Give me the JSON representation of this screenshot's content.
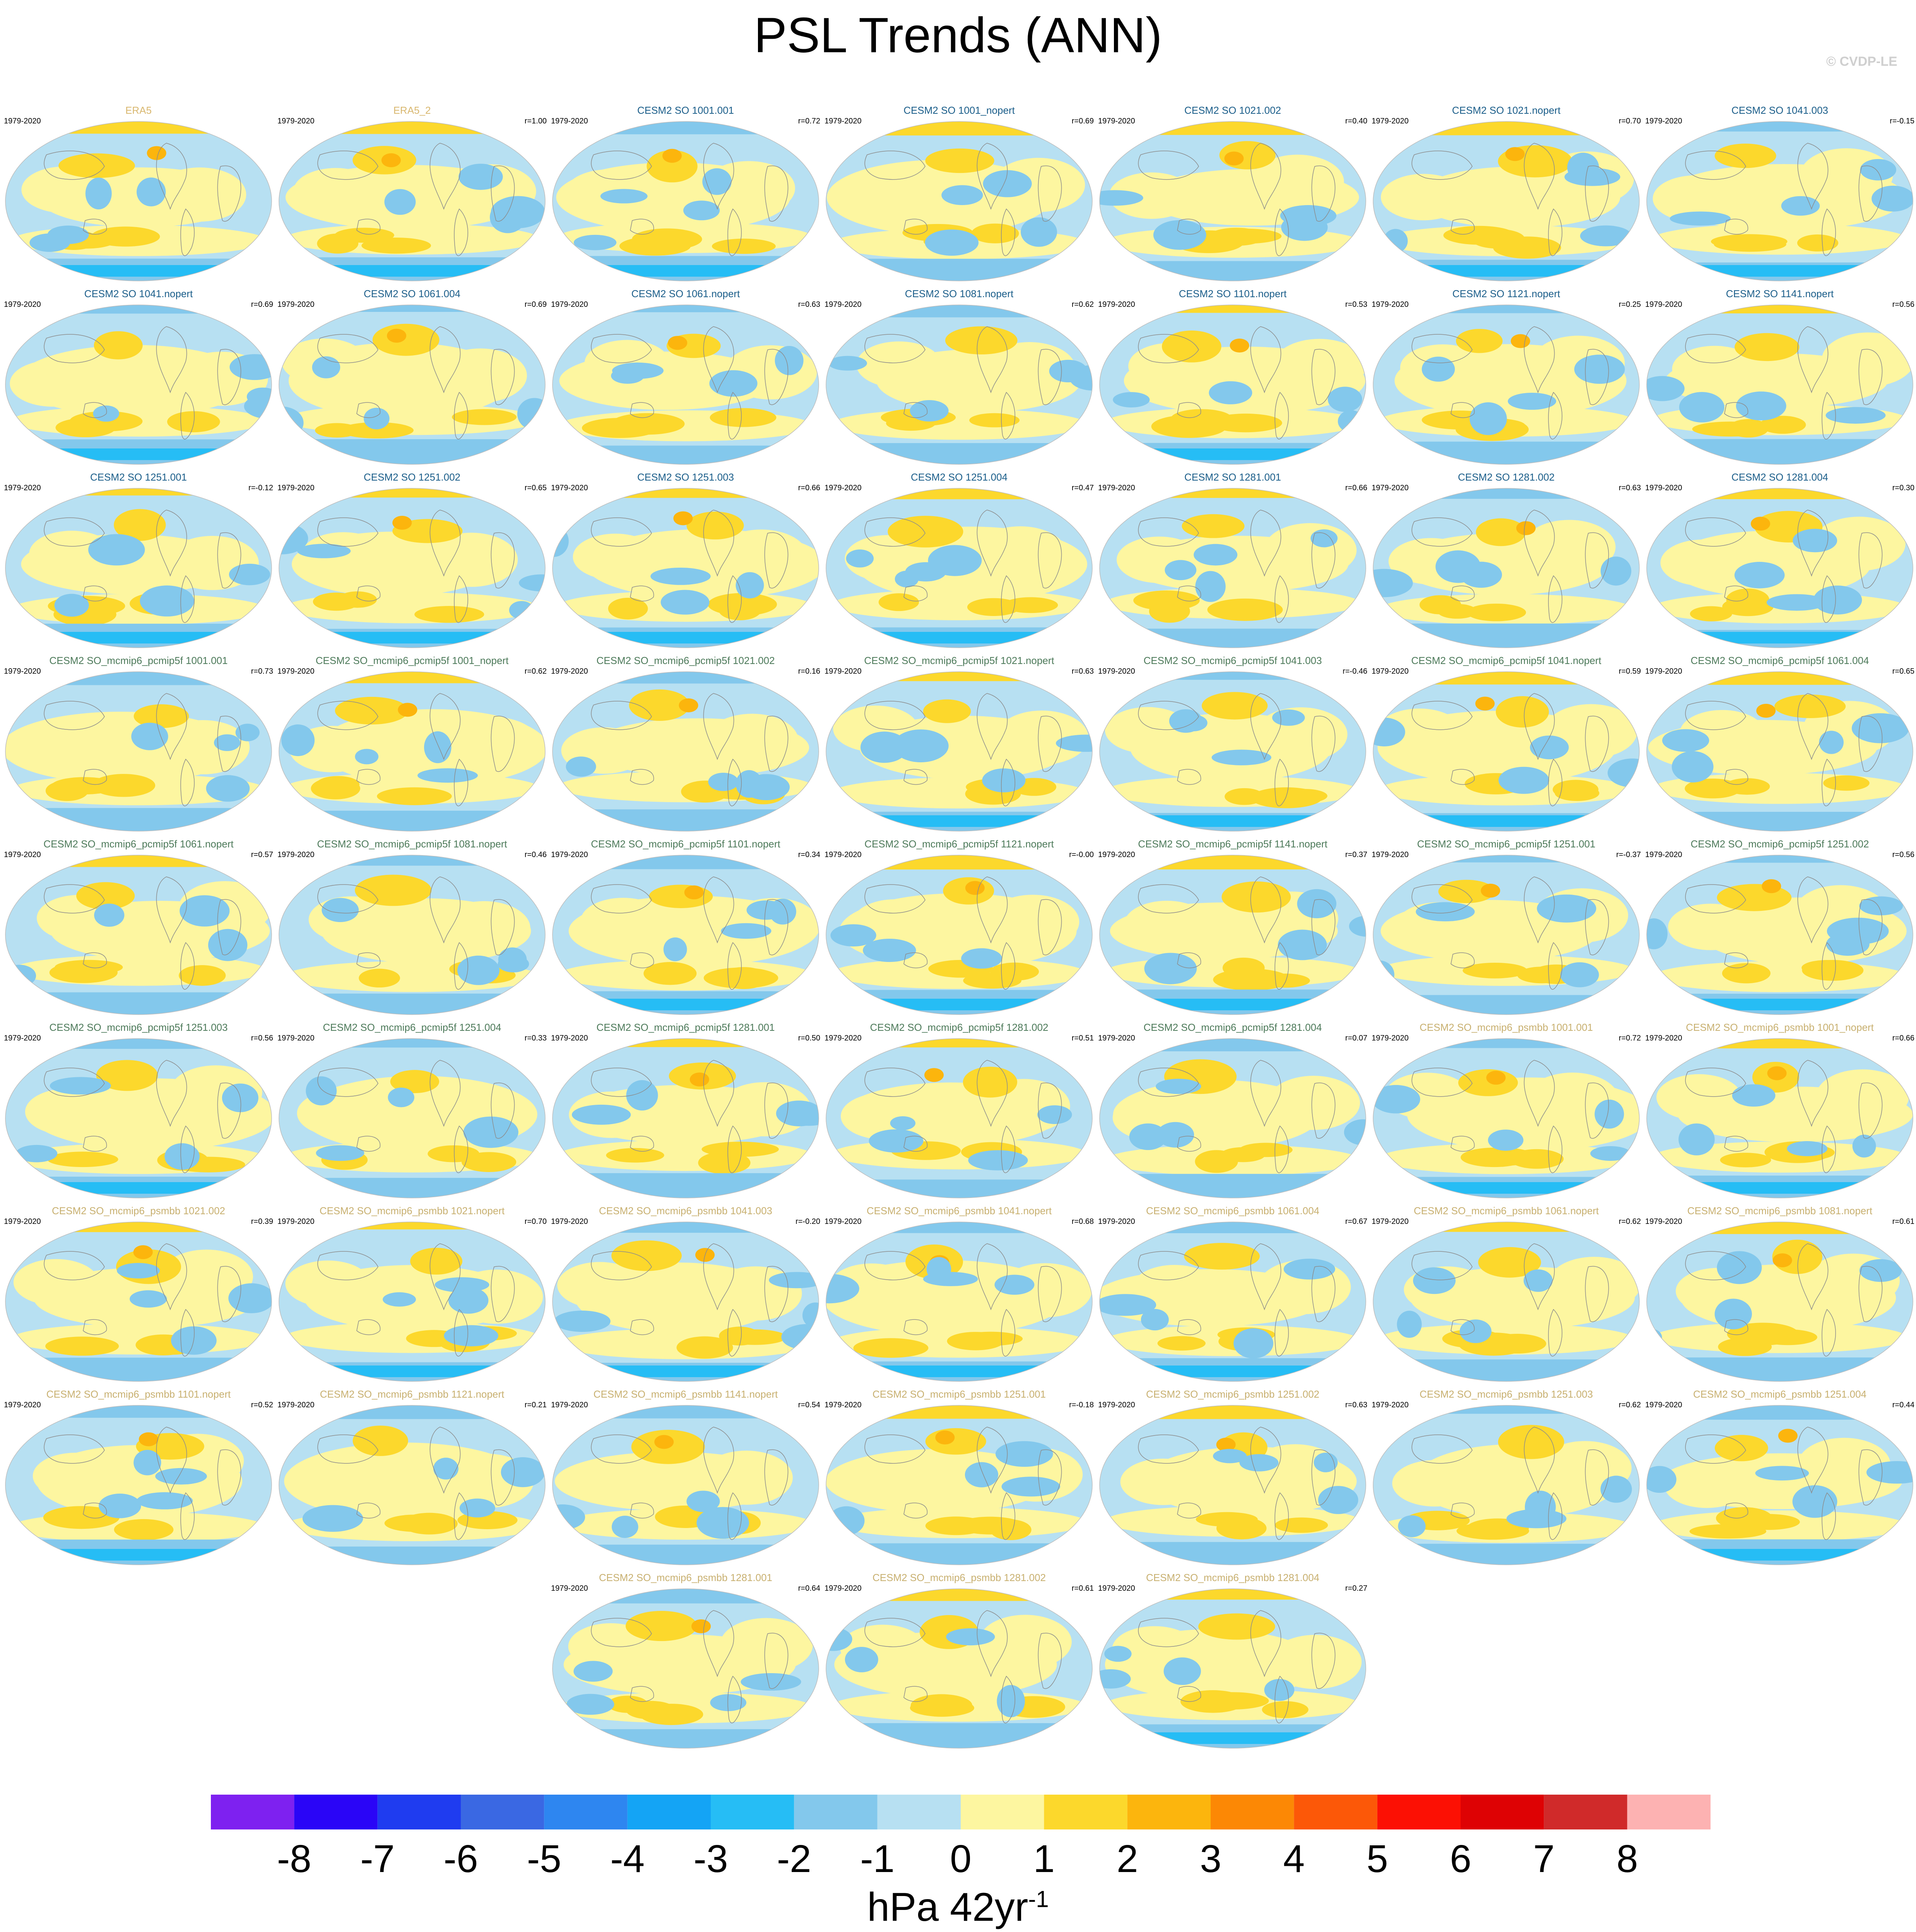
{
  "title": "PSL Trends (ANN)",
  "credit": "© CVDP-LE",
  "colors": {
    "title_ref": "#d9b870",
    "title_so": "#1b5e8a",
    "title_pcmip": "#4d7a5a",
    "title_psmbb": "#c8b070",
    "land_outline": "#8c8c8c"
  },
  "panels": [
    {
      "title": "ERA5",
      "period": "1979-2020",
      "r": "",
      "group": "ref"
    },
    {
      "title": "ERA5_2",
      "period": "1979-2020",
      "r": "r=1.00",
      "group": "ref"
    },
    {
      "title": "CESM2 SO 1001.001",
      "period": "1979-2020",
      "r": "r=0.72",
      "group": "so"
    },
    {
      "title": "CESM2 SO 1001_nopert",
      "period": "1979-2020",
      "r": "r=0.69",
      "group": "so"
    },
    {
      "title": "CESM2 SO 1021.002",
      "period": "1979-2020",
      "r": "r=0.40",
      "group": "so"
    },
    {
      "title": "CESM2 SO 1021.nopert",
      "period": "1979-2020",
      "r": "r=0.70",
      "group": "so"
    },
    {
      "title": "CESM2 SO 1041.003",
      "period": "1979-2020",
      "r": "r=-0.15",
      "group": "so"
    },
    {
      "title": "CESM2 SO 1041.nopert",
      "period": "1979-2020",
      "r": "r=0.69",
      "group": "so"
    },
    {
      "title": "CESM2 SO 1061.004",
      "period": "1979-2020",
      "r": "r=0.69",
      "group": "so"
    },
    {
      "title": "CESM2 SO 1061.nopert",
      "period": "1979-2020",
      "r": "r=0.63",
      "group": "so"
    },
    {
      "title": "CESM2 SO 1081.nopert",
      "period": "1979-2020",
      "r": "r=0.62",
      "group": "so"
    },
    {
      "title": "CESM2 SO 1101.nopert",
      "period": "1979-2020",
      "r": "r=0.53",
      "group": "so"
    },
    {
      "title": "CESM2 SO 1121.nopert",
      "period": "1979-2020",
      "r": "r=0.25",
      "group": "so"
    },
    {
      "title": "CESM2 SO 1141.nopert",
      "period": "1979-2020",
      "r": "r=0.56",
      "group": "so"
    },
    {
      "title": "CESM2 SO 1251.001",
      "period": "1979-2020",
      "r": "r=-0.12",
      "group": "so"
    },
    {
      "title": "CESM2 SO 1251.002",
      "period": "1979-2020",
      "r": "r=0.65",
      "group": "so"
    },
    {
      "title": "CESM2 SO 1251.003",
      "period": "1979-2020",
      "r": "r=0.66",
      "group": "so"
    },
    {
      "title": "CESM2 SO 1251.004",
      "period": "1979-2020",
      "r": "r=0.47",
      "group": "so"
    },
    {
      "title": "CESM2 SO 1281.001",
      "period": "1979-2020",
      "r": "r=0.66",
      "group": "so"
    },
    {
      "title": "CESM2 SO 1281.002",
      "period": "1979-2020",
      "r": "r=0.63",
      "group": "so"
    },
    {
      "title": "CESM2 SO 1281.004",
      "period": "1979-2020",
      "r": "r=0.30",
      "group": "so"
    },
    {
      "title": "CESM2 SO_mcmip6_pcmip5f 1001.001",
      "period": "1979-2020",
      "r": "r=0.73",
      "group": "pcmip"
    },
    {
      "title": "CESM2 SO_mcmip6_pcmip5f 1001_nopert",
      "period": "1979-2020",
      "r": "r=0.62",
      "group": "pcmip"
    },
    {
      "title": "CESM2 SO_mcmip6_pcmip5f 1021.002",
      "period": "1979-2020",
      "r": "r=0.16",
      "group": "pcmip"
    },
    {
      "title": "CESM2 SO_mcmip6_pcmip5f 1021.nopert",
      "period": "1979-2020",
      "r": "r=0.63",
      "group": "pcmip"
    },
    {
      "title": "CESM2 SO_mcmip6_pcmip5f 1041.003",
      "period": "1979-2020",
      "r": "r=-0.46",
      "group": "pcmip"
    },
    {
      "title": "CESM2 SO_mcmip6_pcmip5f 1041.nopert",
      "period": "1979-2020",
      "r": "r=0.59",
      "group": "pcmip"
    },
    {
      "title": "CESM2 SO_mcmip6_pcmip5f 1061.004",
      "period": "1979-2020",
      "r": "r=0.65",
      "group": "pcmip"
    },
    {
      "title": "CESM2 SO_mcmip6_pcmip5f 1061.nopert",
      "period": "1979-2020",
      "r": "r=0.57",
      "group": "pcmip"
    },
    {
      "title": "CESM2 SO_mcmip6_pcmip5f 1081.nopert",
      "period": "1979-2020",
      "r": "r=0.46",
      "group": "pcmip"
    },
    {
      "title": "CESM2 SO_mcmip6_pcmip5f 1101.nopert",
      "period": "1979-2020",
      "r": "r=0.34",
      "group": "pcmip"
    },
    {
      "title": "CESM2 SO_mcmip6_pcmip5f 1121.nopert",
      "period": "1979-2020",
      "r": "r=-0.00",
      "group": "pcmip"
    },
    {
      "title": "CESM2 SO_mcmip6_pcmip5f 1141.nopert",
      "period": "1979-2020",
      "r": "r=0.37",
      "group": "pcmip"
    },
    {
      "title": "CESM2 SO_mcmip6_pcmip5f 1251.001",
      "period": "1979-2020",
      "r": "r=-0.37",
      "group": "pcmip"
    },
    {
      "title": "CESM2 SO_mcmip6_pcmip5f 1251.002",
      "period": "1979-2020",
      "r": "r=0.56",
      "group": "pcmip"
    },
    {
      "title": "CESM2 SO_mcmip6_pcmip5f 1251.003",
      "period": "1979-2020",
      "r": "r=0.56",
      "group": "pcmip"
    },
    {
      "title": "CESM2 SO_mcmip6_pcmip5f 1251.004",
      "period": "1979-2020",
      "r": "r=0.33",
      "group": "pcmip"
    },
    {
      "title": "CESM2 SO_mcmip6_pcmip5f 1281.001",
      "period": "1979-2020",
      "r": "r=0.50",
      "group": "pcmip"
    },
    {
      "title": "CESM2 SO_mcmip6_pcmip5f 1281.002",
      "period": "1979-2020",
      "r": "r=0.51",
      "group": "pcmip"
    },
    {
      "title": "CESM2 SO_mcmip6_pcmip5f 1281.004",
      "period": "1979-2020",
      "r": "r=0.07",
      "group": "pcmip"
    },
    {
      "title": "CESM2 SO_mcmip6_psmbb 1001.001",
      "period": "1979-2020",
      "r": "r=0.72",
      "group": "psmbb"
    },
    {
      "title": "CESM2 SO_mcmip6_psmbb 1001_nopert",
      "period": "1979-2020",
      "r": "r=0.66",
      "group": "psmbb"
    },
    {
      "title": "CESM2 SO_mcmip6_psmbb 1021.002",
      "period": "1979-2020",
      "r": "r=0.39",
      "group": "psmbb"
    },
    {
      "title": "CESM2 SO_mcmip6_psmbb 1021.nopert",
      "period": "1979-2020",
      "r": "r=0.70",
      "group": "psmbb"
    },
    {
      "title": "CESM2 SO_mcmip6_psmbb 1041.003",
      "period": "1979-2020",
      "r": "r=-0.20",
      "group": "psmbb"
    },
    {
      "title": "CESM2 SO_mcmip6_psmbb 1041.nopert",
      "period": "1979-2020",
      "r": "r=0.68",
      "group": "psmbb"
    },
    {
      "title": "CESM2 SO_mcmip6_psmbb 1061.004",
      "period": "1979-2020",
      "r": "r=0.67",
      "group": "psmbb"
    },
    {
      "title": "CESM2 SO_mcmip6_psmbb 1061.nopert",
      "period": "1979-2020",
      "r": "r=0.62",
      "group": "psmbb"
    },
    {
      "title": "CESM2 SO_mcmip6_psmbb 1081.nopert",
      "period": "1979-2020",
      "r": "r=0.61",
      "group": "psmbb"
    },
    {
      "title": "CESM2 SO_mcmip6_psmbb 1101.nopert",
      "period": "1979-2020",
      "r": "r=0.52",
      "group": "psmbb"
    },
    {
      "title": "CESM2 SO_mcmip6_psmbb 1121.nopert",
      "period": "1979-2020",
      "r": "r=0.21",
      "group": "psmbb"
    },
    {
      "title": "CESM2 SO_mcmip6_psmbb 1141.nopert",
      "period": "1979-2020",
      "r": "r=0.54",
      "group": "psmbb"
    },
    {
      "title": "CESM2 SO_mcmip6_psmbb 1251.001",
      "period": "1979-2020",
      "r": "r=-0.18",
      "group": "psmbb"
    },
    {
      "title": "CESM2 SO_mcmip6_psmbb 1251.002",
      "period": "1979-2020",
      "r": "r=0.63",
      "group": "psmbb"
    },
    {
      "title": "CESM2 SO_mcmip6_psmbb 1251.003",
      "period": "1979-2020",
      "r": "r=0.62",
      "group": "psmbb"
    },
    {
      "title": "CESM2 SO_mcmip6_psmbb 1251.004",
      "period": "1979-2020",
      "r": "r=0.44",
      "group": "psmbb"
    },
    {
      "title": "CESM2 SO_mcmip6_psmbb 1281.001",
      "period": "1979-2020",
      "r": "r=0.64",
      "group": "psmbb"
    },
    {
      "title": "CESM2 SO_mcmip6_psmbb 1281.002",
      "period": "1979-2020",
      "r": "r=0.61",
      "group": "psmbb"
    },
    {
      "title": "CESM2 SO_mcmip6_psmbb 1281.004",
      "period": "1979-2020",
      "r": "r=0.27",
      "group": "psmbb"
    }
  ],
  "colorbar": {
    "ticks": [
      "-8",
      "-7",
      "-6",
      "-5",
      "-4",
      "-3",
      "-2",
      "-1",
      "0",
      "1",
      "2",
      "3",
      "4",
      "5",
      "6",
      "7",
      "8"
    ],
    "colors": [
      "#7e21f0",
      "#2a05f7",
      "#1f3cf0",
      "#3a68e3",
      "#2e86f0",
      "#14a4f5",
      "#26bdf5",
      "#83c8ec",
      "#b7e0f2",
      "#fdf6a0",
      "#fcd82c",
      "#fcb50d",
      "#fc8805",
      "#fc5808",
      "#fc1004",
      "#de0204",
      "#d02a2a",
      "#fdb2b2"
    ],
    "units_base": "hPa 42yr",
    "units_exp": "-1"
  },
  "map_palette": {
    "ocean_light_blue": "#b7e0f2",
    "pale_yellow": "#fdf6a0",
    "yellow": "#fcd82c",
    "orange": "#fcb50d",
    "blue": "#83c8ec",
    "strong_blue": "#26bdf5"
  }
}
